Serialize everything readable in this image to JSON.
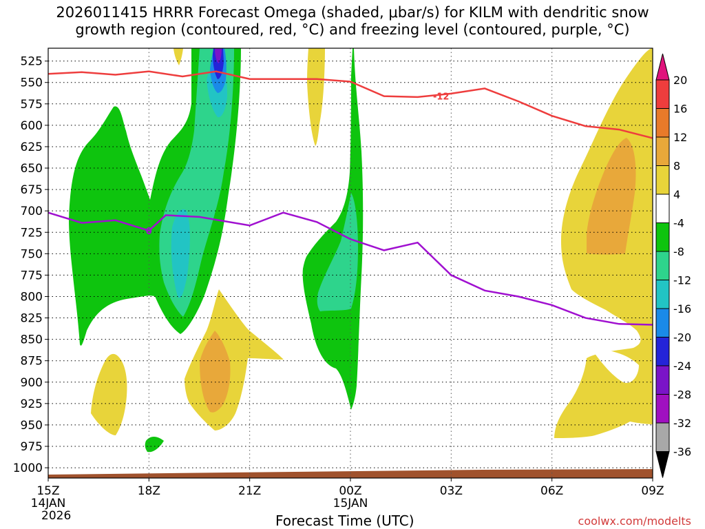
{
  "title_line1": "2026011415 HRRR Forecast Omega (shaded, μbar/s) for KILM with dendritic snow",
  "title_line2": "growth region (contoured, red, °C) and freezing level (contoured, purple, °C)",
  "credit": "coolwx.com/modelts",
  "chart_data": {
    "type": "time-height contour",
    "title": "2026011415 HRRR Forecast Omega (shaded, μbar/s) for KILM with dendritic snow growth region (contoured, red, °C) and freezing level (contoured, purple, °C)",
    "xlabel": "Forecast Time (UTC)",
    "ylabel": "",
    "x_range_hours": [
      0,
      18
    ],
    "y_range_mb": [
      1012,
      510
    ],
    "y_ticks": [
      525,
      550,
      575,
      600,
      625,
      650,
      675,
      700,
      725,
      750,
      775,
      800,
      825,
      850,
      875,
      900,
      925,
      950,
      975,
      1000
    ],
    "x_ticks": [
      {
        "hour": 0,
        "label": "15Z",
        "sub1": "14JAN",
        "sub2": "2026"
      },
      {
        "hour": 3,
        "label": "18Z",
        "sub1": "",
        "sub2": ""
      },
      {
        "hour": 6,
        "label": "21Z",
        "sub1": "",
        "sub2": ""
      },
      {
        "hour": 9,
        "label": "00Z",
        "sub1": "15JAN",
        "sub2": ""
      },
      {
        "hour": 12,
        "label": "03Z",
        "sub1": "",
        "sub2": ""
      },
      {
        "hour": 15,
        "label": "06Z",
        "sub1": "",
        "sub2": ""
      },
      {
        "hour": 18,
        "label": "09Z",
        "sub1": "",
        "sub2": ""
      }
    ],
    "colorbar": {
      "levels": [
        -36,
        -32,
        -28,
        -24,
        -20,
        -16,
        -12,
        -8,
        -4,
        4,
        8,
        12,
        16,
        20
      ],
      "labels": [
        "20",
        "16",
        "12",
        "8",
        "4",
        "-4",
        "-8",
        "-12",
        "-16",
        "-20",
        "-24",
        "-28",
        "-32",
        "-36"
      ],
      "colors_top_to_bottom": [
        "#e0147c",
        "#ee3d3d",
        "#e87a2a",
        "#e8a83a",
        "#e8d43a",
        "#ffffff",
        "#0ec40e",
        "#2ed48c",
        "#22c4c4",
        "#1a8ae8",
        "#2424d8",
        "#7a14c8",
        "#a010c0",
        "#a8a8a8",
        "#000000"
      ]
    },
    "freezing_level_0C": {
      "label": "0",
      "points": [
        [
          0,
          702
        ],
        [
          1,
          714
        ],
        [
          2,
          711
        ],
        [
          3,
          723
        ],
        [
          3.5,
          705
        ],
        [
          4.5,
          707
        ],
        [
          6,
          717
        ],
        [
          7,
          702
        ],
        [
          8,
          713
        ],
        [
          9,
          733
        ],
        [
          10,
          746
        ],
        [
          11,
          737
        ],
        [
          12,
          775
        ],
        [
          13,
          793
        ],
        [
          14,
          800
        ],
        [
          15,
          810
        ],
        [
          16,
          825
        ],
        [
          17,
          832
        ],
        [
          18,
          833
        ]
      ]
    },
    "dendritic_growth_minus12C": {
      "label": "-12",
      "points": [
        [
          0,
          540
        ],
        [
          1,
          538
        ],
        [
          2,
          541
        ],
        [
          3,
          537
        ],
        [
          4,
          543
        ],
        [
          5,
          537
        ],
        [
          6,
          546
        ],
        [
          8,
          546
        ],
        [
          9,
          549
        ],
        [
          10,
          566
        ],
        [
          11,
          567
        ],
        [
          12,
          563
        ],
        [
          13,
          557
        ],
        [
          14,
          572
        ],
        [
          15,
          589
        ],
        [
          16,
          601
        ],
        [
          17,
          605
        ],
        [
          18,
          615
        ]
      ]
    },
    "omega_regions": [
      {
        "value_range": "-8 to -4",
        "name": "green-band-1"
      },
      {
        "value_range": "-12 to -8",
        "name": "teal-core-1"
      },
      {
        "value_range": "-36 to -12",
        "name": "deep-core"
      },
      {
        "value_range": "4 to 8",
        "name": "yellow-regions"
      },
      {
        "value_range": "8 to 12",
        "name": "orange-regions"
      }
    ]
  }
}
